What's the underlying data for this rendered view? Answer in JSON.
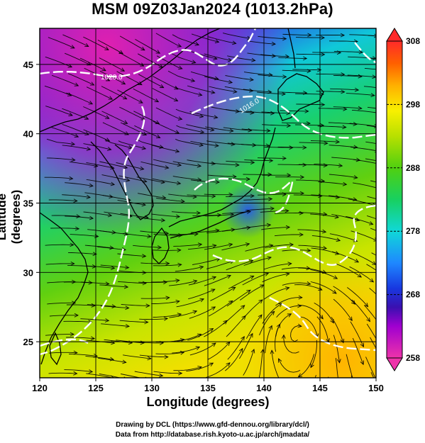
{
  "title": "MSM 09Z03Jan2024 (1013.2hPa)",
  "xlabel": "Longitude (degrees)",
  "ylabel": "Latitude  (degrees)",
  "x_ticks": [
    "120",
    "125",
    "130",
    "135",
    "140",
    "145",
    "150"
  ],
  "y_ticks": [
    "25",
    "30",
    "35",
    "40",
    "45"
  ],
  "colorbar_ticks": [
    "258",
    "268",
    "278",
    "288",
    "298",
    "308"
  ],
  "isobar_labels": [
    "1020.0",
    "1016.0"
  ],
  "credits": {
    "line1": "Drawing by DCL (https://www.gfd-dennou.org/library/dcl/)",
    "line2": "Data from http://database.rish.kyoto-u.ac.jp/arch/jmadata/"
  },
  "map_extent": {
    "lon": [
      120,
      150
    ],
    "lat": [
      22.4,
      47.6
    ]
  },
  "colorbar_range": [
    258,
    308
  ],
  "colors": {
    "isobar": "#ffffff",
    "coast": "#000000",
    "streamline": "#000000"
  }
}
